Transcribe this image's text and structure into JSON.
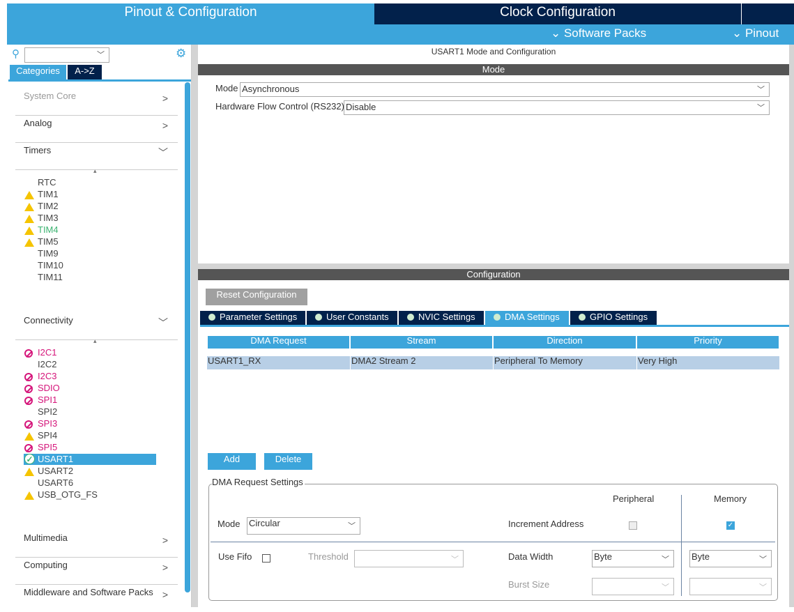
{
  "top_tabs": {
    "pinout": "Pinout & Configuration",
    "clock": "Clock Configuration"
  },
  "sub_menu": {
    "software_packs": "Software Packs",
    "pinout": "Pinout"
  },
  "sidebar": {
    "search_value": "",
    "tabs": [
      "Categories",
      "A->Z"
    ],
    "categories": [
      "System Core",
      "Analog",
      "Timers",
      "Connectivity",
      "Multimedia",
      "Computing",
      "Middleware and Software Packs"
    ],
    "timers": [
      {
        "label": "RTC",
        "status": "none"
      },
      {
        "label": "TIM1",
        "status": "warning"
      },
      {
        "label": "TIM2",
        "status": "warning"
      },
      {
        "label": "TIM3",
        "status": "warning"
      },
      {
        "label": "TIM4",
        "status": "warning",
        "color": "#3cb371"
      },
      {
        "label": "TIM5",
        "status": "warning"
      },
      {
        "label": "TIM9",
        "status": "none"
      },
      {
        "label": "TIM10",
        "status": "none"
      },
      {
        "label": "TIM11",
        "status": "none"
      }
    ],
    "connectivity": [
      {
        "label": "I2C1",
        "status": "disabled"
      },
      {
        "label": "I2C2",
        "status": "none"
      },
      {
        "label": "I2C3",
        "status": "disabled"
      },
      {
        "label": "SDIO",
        "status": "disabled"
      },
      {
        "label": "SPI1",
        "status": "disabled"
      },
      {
        "label": "SPI2",
        "status": "none"
      },
      {
        "label": "SPI3",
        "status": "disabled"
      },
      {
        "label": "SPI4",
        "status": "warning"
      },
      {
        "label": "SPI5",
        "status": "disabled"
      },
      {
        "label": "USART1",
        "status": "ok",
        "selected": true
      },
      {
        "label": "USART2",
        "status": "warning"
      },
      {
        "label": "USART6",
        "status": "none"
      },
      {
        "label": "USB_OTG_FS",
        "status": "warning"
      }
    ]
  },
  "main": {
    "title": "USART1 Mode and Configuration",
    "mode_header": "Mode",
    "mode_label": "Mode",
    "mode_value": "Asynchronous",
    "hfc_label": "Hardware Flow Control (RS232)",
    "hfc_value": "Disable",
    "config_header": "Configuration",
    "reset_button": "Reset Configuration",
    "tabs": [
      "Parameter Settings",
      "User Constants",
      "NVIC Settings",
      "DMA Settings",
      "GPIO Settings"
    ],
    "active_tab": "DMA Settings",
    "table": {
      "headers": [
        "DMA Request",
        "Stream",
        "Direction",
        "Priority"
      ],
      "rows": [
        [
          "USART1_RX",
          "DMA2 Stream 2",
          "Peripheral To Memory",
          "Very High"
        ]
      ]
    },
    "add_button": "Add",
    "delete_button": "Delete",
    "dma_settings": {
      "legend": "DMA Request Settings",
      "peripheral": "Peripheral",
      "memory": "Memory",
      "mode_label": "Mode",
      "mode_value": "Circular",
      "increment_label": "Increment Address",
      "periph_increment": false,
      "memory_increment": true,
      "use_fifo_label": "Use Fifo",
      "use_fifo": false,
      "threshold_label": "Threshold",
      "threshold_value": "",
      "data_width_label": "Data Width",
      "periph_width": "Byte",
      "memory_width": "Byte",
      "burst_label": "Burst Size",
      "periph_burst": "",
      "memory_burst": ""
    }
  },
  "colors": {
    "accent": "#3ca5db",
    "dark": "#02214b",
    "disabled": "#d5157a",
    "warning": "#f5c400"
  }
}
